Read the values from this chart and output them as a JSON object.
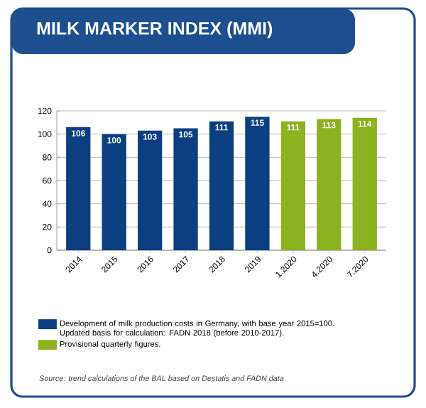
{
  "chart_data": {
    "type": "bar",
    "title": "MILK MARKER INDEX (MMI)",
    "categories": [
      "2014",
      "2015",
      "2016",
      "2017",
      "2018",
      "2019",
      "1.2020",
      "4.2020",
      "7.2020"
    ],
    "series": [
      {
        "name": "Development of milk production costs in Germany, with base year 2015=100. Updated basis for calculation: FADN 2018 (before 2010-2017).",
        "color": "#0b3f80",
        "values": [
          106,
          100,
          103,
          105,
          111,
          115,
          null,
          null,
          null
        ]
      },
      {
        "name": "Provisional quarterly figures.",
        "color": "#8cb21f",
        "values": [
          null,
          null,
          null,
          null,
          null,
          null,
          111,
          113,
          114
        ]
      }
    ],
    "ylim": [
      0,
      120
    ],
    "yticks": [
      0,
      20,
      40,
      60,
      80,
      100,
      120
    ],
    "grid": "y",
    "legend": "bottom",
    "data_labels": true,
    "annotations": [
      "Source: trend calculations of the *BAL* based on *Destatis* and *FADN* data"
    ]
  }
}
